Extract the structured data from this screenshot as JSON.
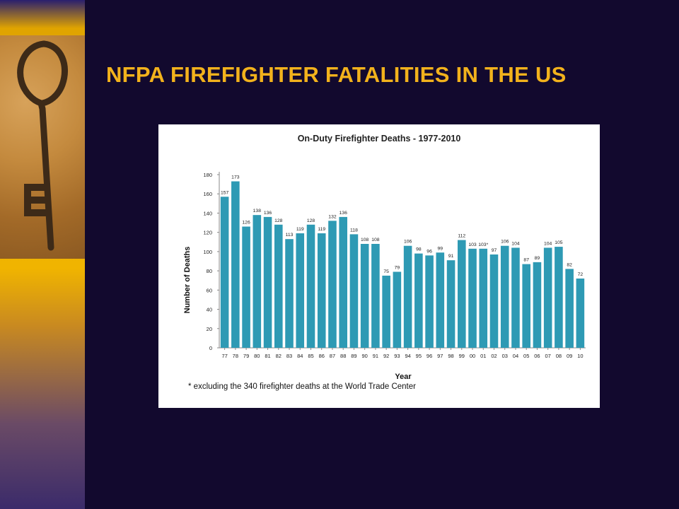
{
  "slide": {
    "title": "NFPA FIREFIGHTER FATALITIES IN THE US"
  },
  "colors": {
    "background": "#12092e",
    "title": "#f2b21c",
    "bar": "#2e9ab4"
  },
  "decoration": {
    "image": "old-iron-key-on-sand"
  },
  "chart_data": {
    "type": "bar",
    "title": "On-Duty Firefighter Deaths - 1977-2010",
    "xlabel": "Year",
    "ylabel": "Number of Deaths",
    "ylim": [
      0,
      180
    ],
    "yticks": [
      0,
      20,
      40,
      60,
      80,
      100,
      120,
      140,
      160,
      180
    ],
    "categories": [
      "77",
      "78",
      "79",
      "80",
      "81",
      "82",
      "83",
      "84",
      "85",
      "86",
      "87",
      "88",
      "89",
      "90",
      "91",
      "92",
      "93",
      "94",
      "95",
      "96",
      "97",
      "98",
      "99",
      "00",
      "01",
      "02",
      "03",
      "04",
      "05",
      "06",
      "07",
      "08",
      "09",
      "10"
    ],
    "values": [
      157,
      173,
      126,
      138,
      136,
      128,
      113,
      119,
      128,
      119,
      132,
      136,
      118,
      108,
      108,
      75,
      79,
      106,
      98,
      96,
      99,
      91,
      112,
      103,
      103,
      97,
      106,
      104,
      87,
      89,
      104,
      105,
      82,
      72
    ],
    "value_labels": [
      "157",
      "173",
      "126",
      "138",
      "136",
      "128",
      "113",
      "119",
      "128",
      "119",
      "132",
      "136",
      "118",
      "108",
      "108",
      "75",
      "79",
      "106",
      "98",
      "96",
      "99",
      "91",
      "112",
      "103",
      "103*",
      "97",
      "106",
      "104",
      "87",
      "89",
      "104",
      "105",
      "82",
      "72"
    ],
    "footnote": "*  excluding the 340 firefighter deaths at the World Trade Center",
    "grid": false,
    "legend": "none"
  }
}
